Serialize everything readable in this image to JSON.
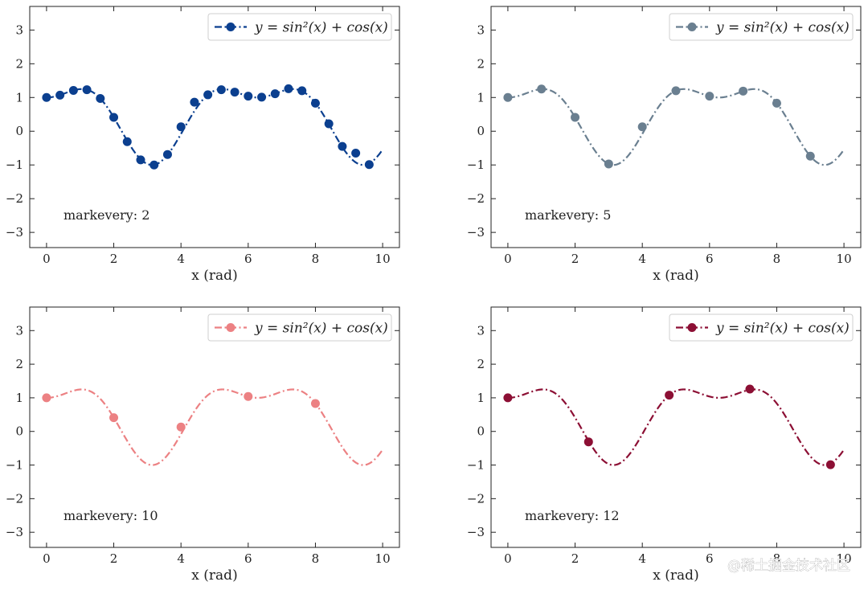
{
  "watermark": "@稀土掘金技术社区",
  "chart_data": [
    {
      "type": "line",
      "function": "y = sin^2(x) + cos(x)",
      "legend": "y = sin²(x) + cos(x)",
      "annotation": "markevery: 2",
      "markevery": 2,
      "color": "#0b3f8f",
      "linestyle": "dashdot",
      "marker": "circle",
      "xlabel": "x (rad)",
      "xlim": [
        -0.5,
        10.5
      ],
      "ylim": [
        -3.45,
        3.7
      ],
      "x_range": [
        0,
        10
      ],
      "xticks": [
        "0",
        "2",
        "4",
        "6",
        "8",
        "10"
      ],
      "yticks": [
        "−3",
        "−2",
        "−1",
        "0",
        "1",
        "2",
        "3"
      ],
      "legend_position": "upper right",
      "marker_x": [
        0.0,
        0.4,
        0.8,
        1.2,
        1.6,
        2.0,
        2.4,
        2.8,
        3.2,
        3.6,
        4.0,
        4.4,
        4.8,
        5.2,
        5.6,
        6.0,
        6.4,
        6.8,
        7.2,
        7.6,
        8.0,
        8.4,
        8.8,
        9.2,
        9.6
      ],
      "marker_y": [
        1.0,
        1.07,
        1.21,
        1.23,
        0.97,
        0.41,
        -0.31,
        -0.85,
        -1.0,
        -0.69,
        0.13,
        0.86,
        1.08,
        1.23,
        1.16,
        1.04,
        1.01,
        1.11,
        1.26,
        1.2,
        0.83,
        0.22,
        -0.45,
        -0.65,
        -0.99
      ]
    },
    {
      "type": "line",
      "function": "y = sin^2(x) + cos(x)",
      "legend": "y = sin²(x) + cos(x)",
      "annotation": "markevery: 5",
      "markevery": 5,
      "color": "#6a7f90",
      "linestyle": "dashdot",
      "marker": "circle",
      "xlabel": "x (rad)",
      "xlim": [
        -0.5,
        10.5
      ],
      "ylim": [
        -3.45,
        3.7
      ],
      "x_range": [
        0,
        10
      ],
      "xticks": [
        "0",
        "2",
        "4",
        "6",
        "8",
        "10"
      ],
      "yticks": [
        "−3",
        "−2",
        "−1",
        "0",
        "1",
        "2",
        "3"
      ],
      "legend_position": "upper right",
      "marker_x": [
        0.0,
        1.0,
        2.0,
        3.0,
        4.0,
        5.0,
        6.0,
        7.0,
        8.0,
        9.0
      ],
      "marker_y": [
        1.0,
        1.25,
        0.41,
        -0.97,
        0.13,
        1.2,
        1.04,
        1.19,
        0.83,
        -0.74
      ]
    },
    {
      "type": "line",
      "function": "y = sin^2(x) + cos(x)",
      "legend": "y = sin²(x) + cos(x)",
      "annotation": "markevery: 10",
      "markevery": 10,
      "color": "#ec8183",
      "linestyle": "dashdot",
      "marker": "circle",
      "xlabel": "x (rad)",
      "xlim": [
        -0.5,
        10.5
      ],
      "ylim": [
        -3.45,
        3.7
      ],
      "x_range": [
        0,
        10
      ],
      "xticks": [
        "0",
        "2",
        "4",
        "6",
        "8",
        "10"
      ],
      "yticks": [
        "−3",
        "−2",
        "−1",
        "0",
        "1",
        "2",
        "3"
      ],
      "legend_position": "upper right",
      "marker_x": [
        0.0,
        2.0,
        4.0,
        6.0,
        8.0
      ],
      "marker_y": [
        1.0,
        0.41,
        0.13,
        1.04,
        0.83
      ]
    },
    {
      "type": "line",
      "function": "y = sin^2(x) + cos(x)",
      "legend": "y = sin²(x) + cos(x)",
      "annotation": "markevery: 12",
      "markevery": 12,
      "color": "#8c0f34",
      "linestyle": "dashdot",
      "marker": "circle",
      "xlabel": "x (rad)",
      "xlim": [
        -0.5,
        10.5
      ],
      "ylim": [
        -3.45,
        3.7
      ],
      "x_range": [
        0,
        10
      ],
      "xticks": [
        "0",
        "2",
        "4",
        "6",
        "8",
        "10"
      ],
      "yticks": [
        "−3",
        "−2",
        "−1",
        "0",
        "1",
        "2",
        "3"
      ],
      "legend_position": "upper right",
      "marker_x": [
        0.0,
        2.4,
        4.8,
        7.2,
        9.6
      ],
      "marker_y": [
        1.0,
        -0.31,
        1.08,
        1.26,
        -0.99
      ]
    }
  ]
}
